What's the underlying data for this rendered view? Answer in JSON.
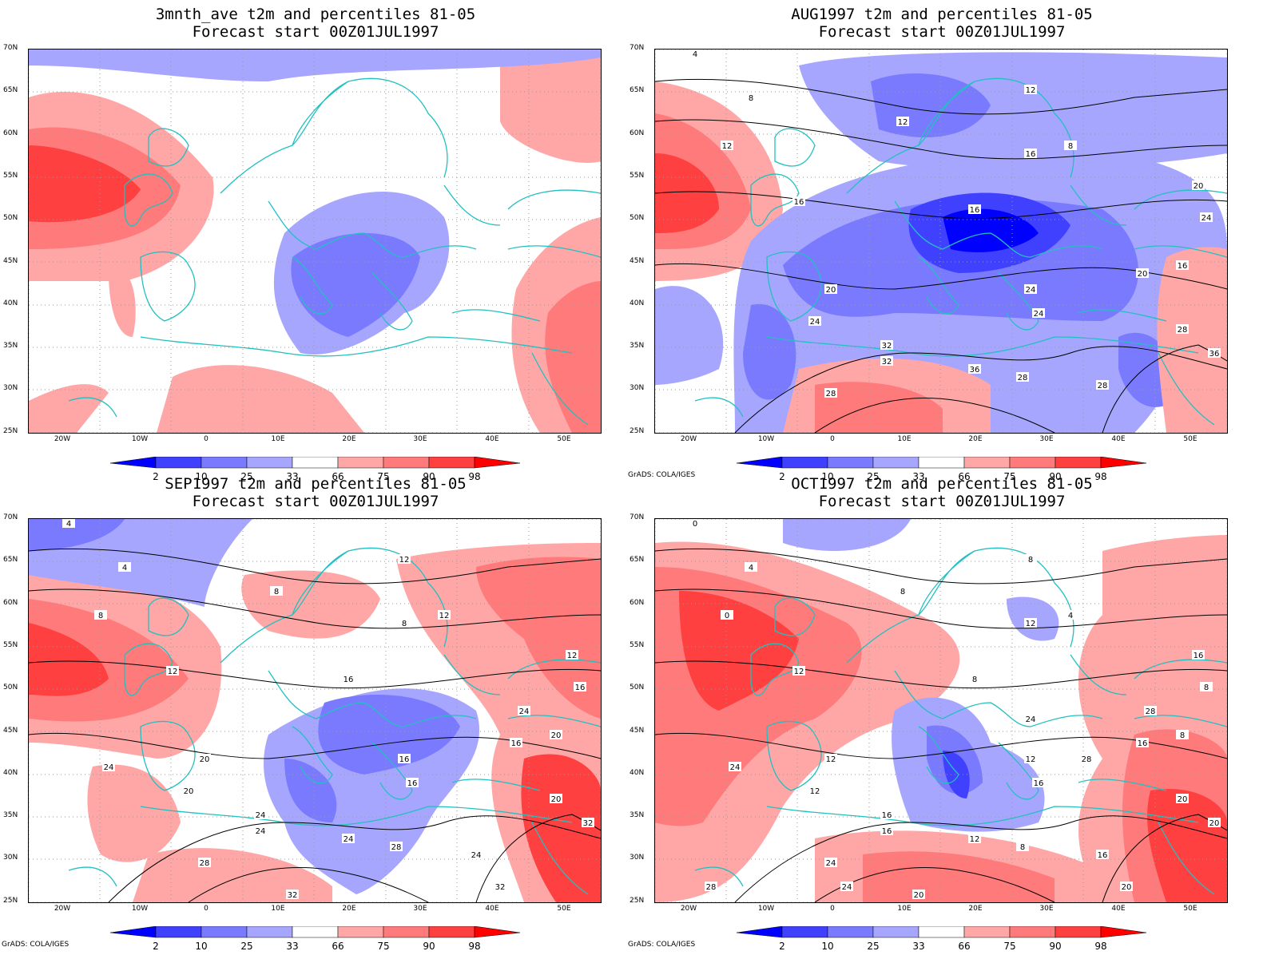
{
  "panels": [
    {
      "title": "3mnth_ave t2m and percentiles 81-05",
      "subtitle": "Forecast start 00Z01JUL1997",
      "credit": "",
      "contour_labels": []
    },
    {
      "title": "AUG1997 t2m and percentiles 81-05",
      "subtitle": "Forecast start 00Z01JUL1997",
      "credit": "GrADS: COLA/IGES",
      "contour_labels": [
        "4",
        "8",
        "12",
        "12",
        "12",
        "8",
        "16",
        "16",
        "16",
        "20",
        "24",
        "16",
        "20",
        "24",
        "20",
        "24",
        "24",
        "28",
        "32",
        "32",
        "36",
        "28",
        "28",
        "36",
        "28"
      ]
    },
    {
      "title": "SEP1997 t2m and percentiles 81-05",
      "subtitle": "Forecast start 00Z01JUL1997",
      "credit": "GrADS: COLA/IGES",
      "contour_labels": [
        "4",
        "4",
        "8",
        "12",
        "8",
        "12",
        "8",
        "12",
        "16",
        "12",
        "16",
        "20",
        "20",
        "16",
        "16",
        "20",
        "16",
        "20",
        "24",
        "24",
        "24",
        "28",
        "24",
        "32",
        "28",
        "32",
        "32",
        "24",
        "24"
      ]
    },
    {
      "title": "OCT1997 t2m and percentiles 81-05",
      "subtitle": "Forecast start 00Z01JUL1997",
      "credit": "GrADS: COLA/IGES",
      "contour_labels": [
        "0",
        "4",
        "8",
        "8",
        "0",
        "4",
        "12",
        "12",
        "8",
        "16",
        "8",
        "8",
        "12",
        "12",
        "16",
        "12",
        "16",
        "20",
        "16",
        "16",
        "12",
        "8",
        "16",
        "20",
        "24",
        "20",
        "20",
        "24",
        "28",
        "28",
        "24",
        "24",
        "28"
      ]
    }
  ],
  "axes": {
    "y_ticks": [
      "70N",
      "65N",
      "60N",
      "55N",
      "50N",
      "45N",
      "40N",
      "35N",
      "30N",
      "25N"
    ],
    "x_ticks": [
      "20W",
      "10W",
      "0",
      "10E",
      "20E",
      "30E",
      "40E",
      "50E"
    ]
  },
  "colorbar": {
    "labels": [
      "2",
      "10",
      "25",
      "33",
      "66",
      "75",
      "90",
      "98"
    ],
    "colors": [
      "#0000ff",
      "#4040ff",
      "#7a7aff",
      "#a6a6ff",
      "#ffffff",
      "#ffa6a6",
      "#ff7a7a",
      "#ff4040",
      "#ff0000"
    ]
  },
  "colors": {
    "coast": "#22c0c0",
    "contour": "#000000"
  }
}
